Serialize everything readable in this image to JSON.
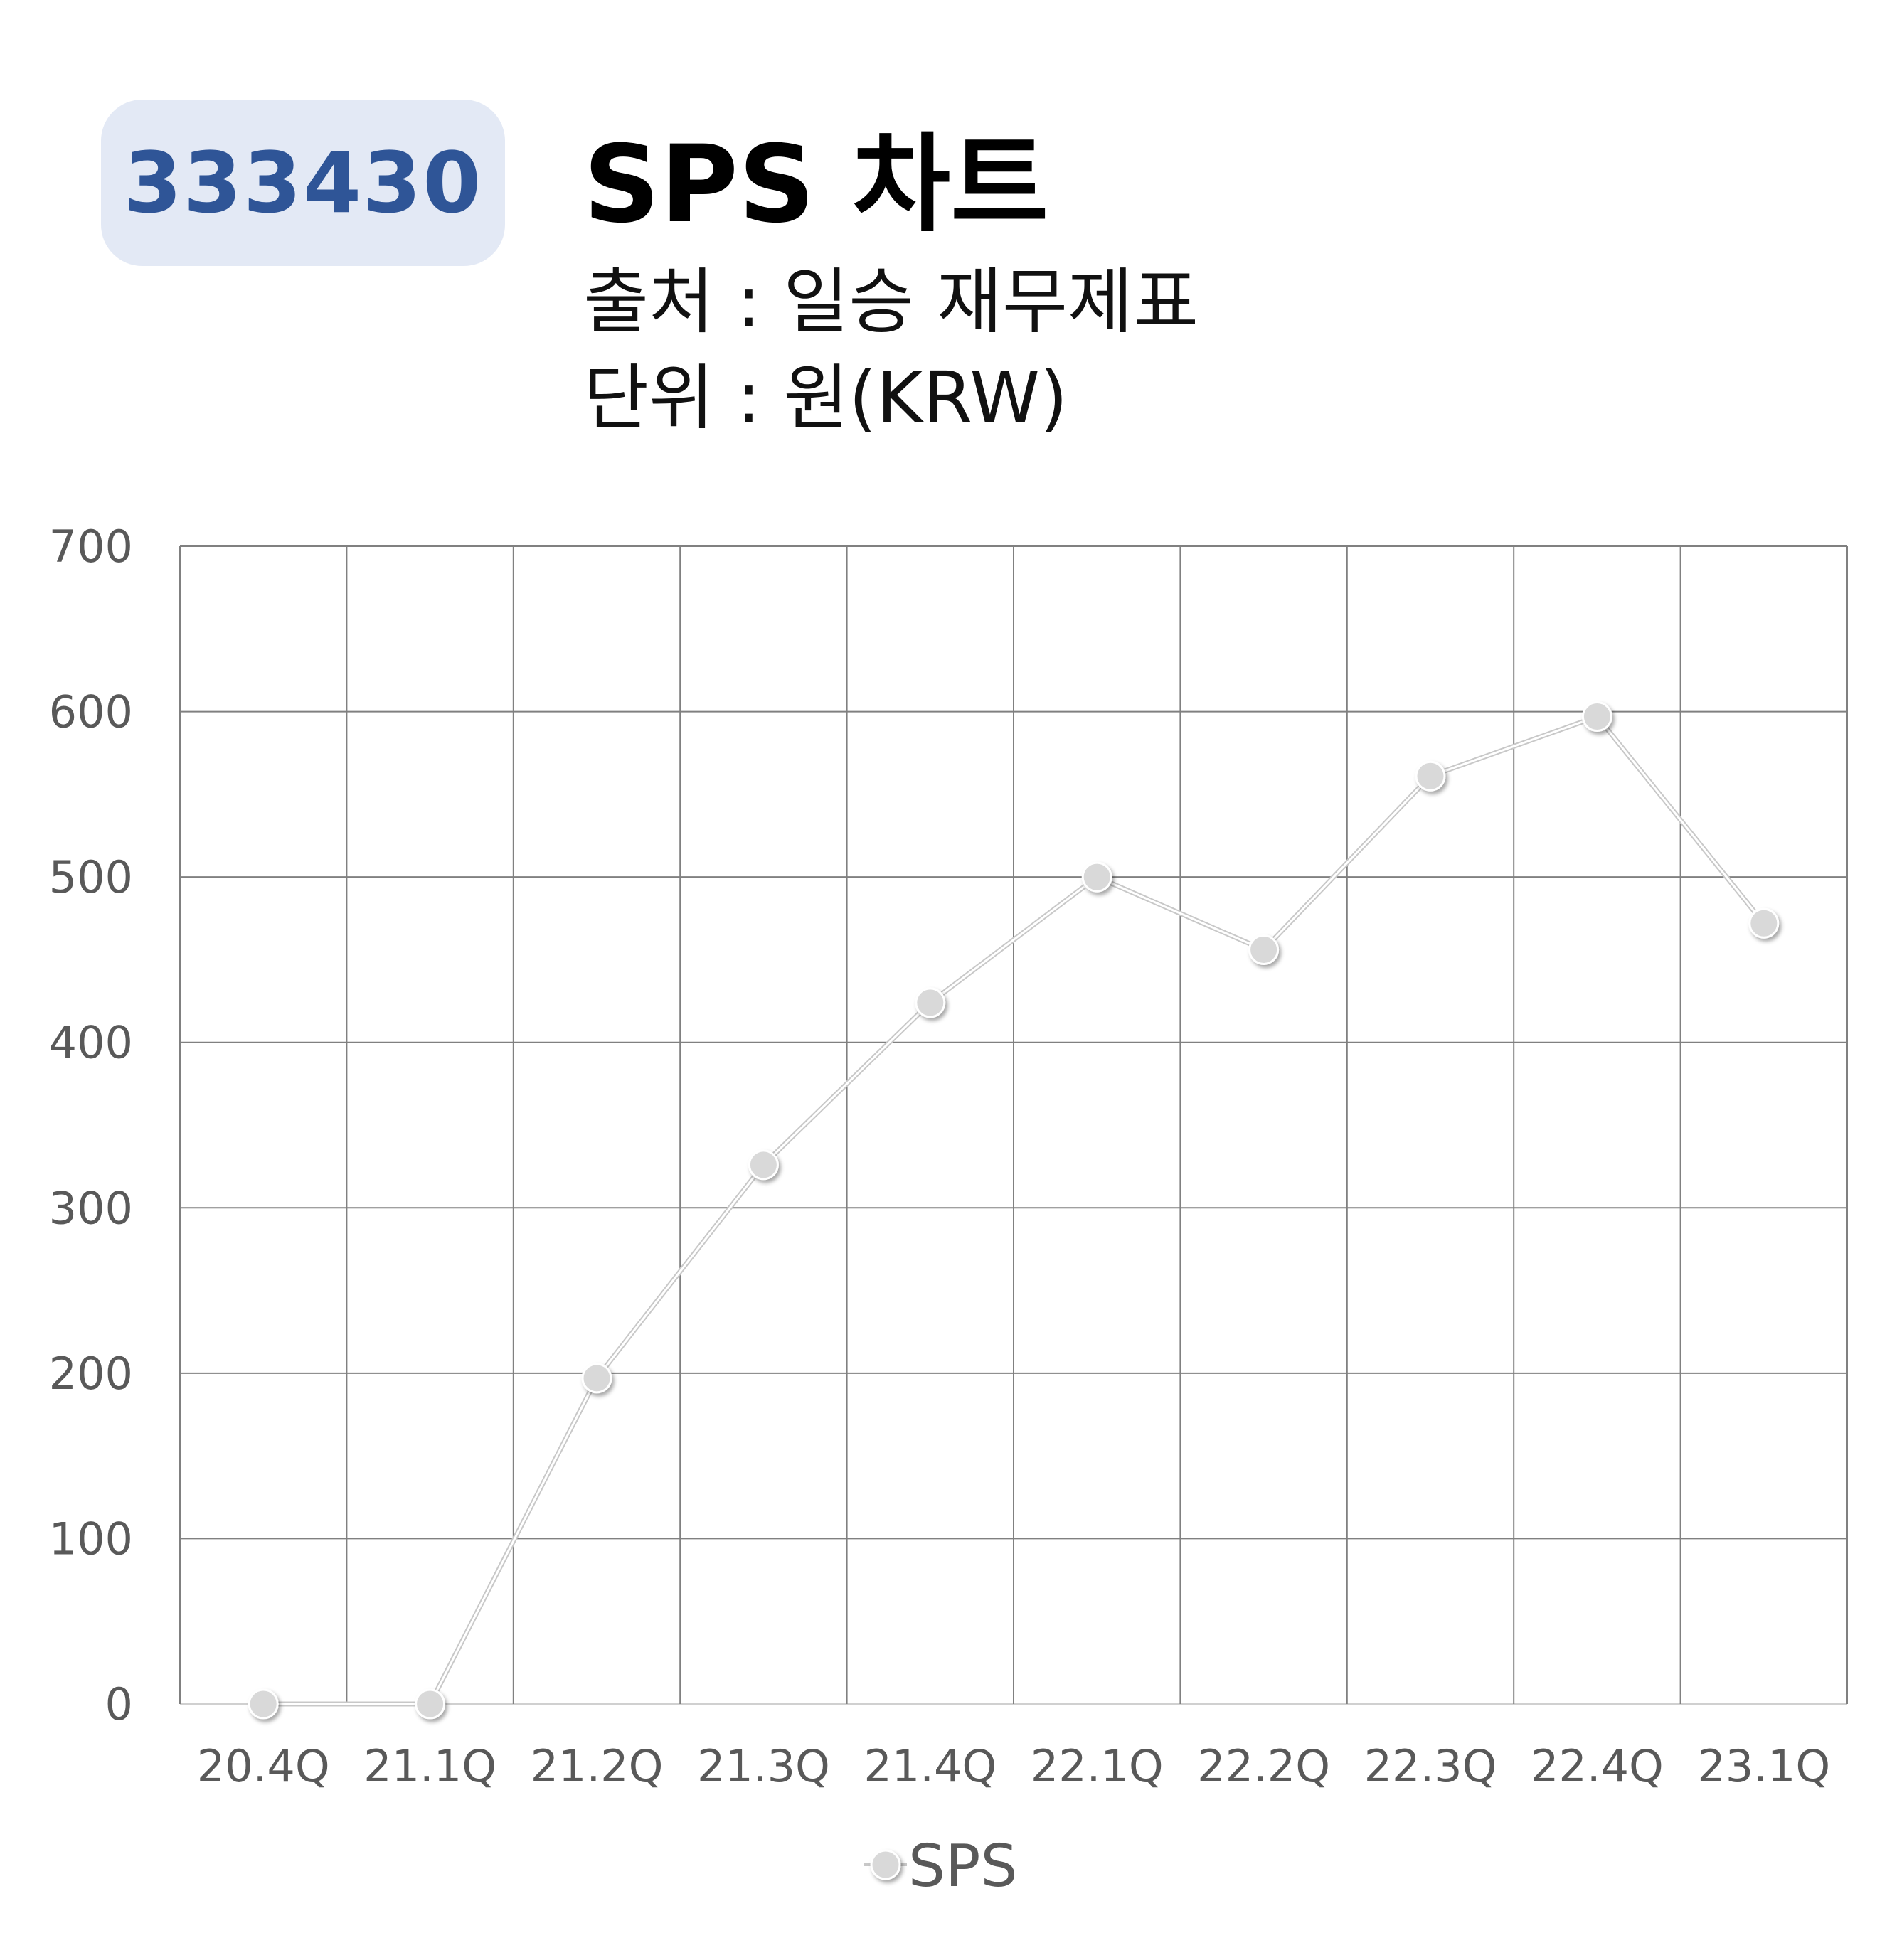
{
  "badge": {
    "code": "333430"
  },
  "header": {
    "title": "SPS 차트",
    "source": "출처 : 일승 재무제표",
    "unit": "단위 : 원(KRW)"
  },
  "colors": {
    "badge_bg": "#e3e9f5",
    "badge_text": "#2f5597",
    "grid": "#808080",
    "line": "#b0b0b0",
    "marker": "#d9d9d9",
    "tick_text": "#595959"
  },
  "chart_data": {
    "type": "line",
    "categories": [
      "20.4Q",
      "21.1Q",
      "21.2Q",
      "21.3Q",
      "21.4Q",
      "22.1Q",
      "22.2Q",
      "22.3Q",
      "22.4Q",
      "23.1Q"
    ],
    "series": [
      {
        "name": "SPS",
        "values": [
          0,
          0,
          197,
          326,
          424,
          500,
          456,
          561,
          597,
          472
        ]
      }
    ],
    "ylim": [
      0,
      700
    ],
    "yticks": [
      0,
      100,
      200,
      300,
      400,
      500,
      600,
      700
    ],
    "grid": true,
    "legend": "bottom-center"
  }
}
